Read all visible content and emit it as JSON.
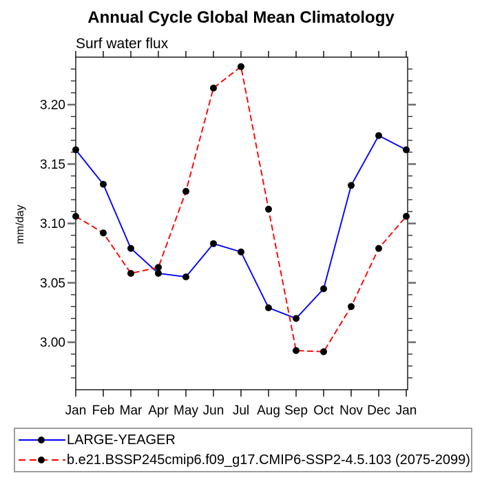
{
  "chart_data": {
    "type": "line",
    "title": "Annual Cycle Global Mean Climatology",
    "subtitle": "Surf water flux",
    "xlabel": "",
    "ylabel": "mm/day",
    "categories": [
      "Jan",
      "Feb",
      "Mar",
      "Apr",
      "May",
      "Jun",
      "Jul",
      "Aug",
      "Sep",
      "Oct",
      "Nov",
      "Dec",
      "Jan"
    ],
    "ylim": [
      2.96,
      3.24
    ],
    "yticks": [
      "3.00",
      "3.05",
      "3.10",
      "3.15",
      "3.20"
    ],
    "minor_tick_step": 0.01,
    "grid": false,
    "legend_position": "bottom",
    "frame_color": "#2b2b2b",
    "major_tick_color": "#6f6f6f",
    "minor_tick_color": "#222222",
    "series": [
      {
        "name": "LARGE-YEAGER",
        "color": "#0000ff",
        "style": "solid",
        "marker": "circle",
        "marker_color": "#000000",
        "values": [
          3.162,
          3.133,
          3.079,
          3.058,
          3.055,
          3.083,
          3.076,
          3.029,
          3.02,
          3.045,
          3.132,
          3.174,
          3.162
        ]
      },
      {
        "name": "b.e21.BSSP245cmip6.f09_g17.CMIP6-SSP2-4.5.103 (2075-2099)",
        "color": "#ff0000",
        "style": "dashed",
        "marker": "circle",
        "marker_color": "#000000",
        "values": [
          3.106,
          3.092,
          3.058,
          3.063,
          3.127,
          3.214,
          3.232,
          3.112,
          2.993,
          2.992,
          3.03,
          3.079,
          3.106
        ]
      }
    ]
  }
}
